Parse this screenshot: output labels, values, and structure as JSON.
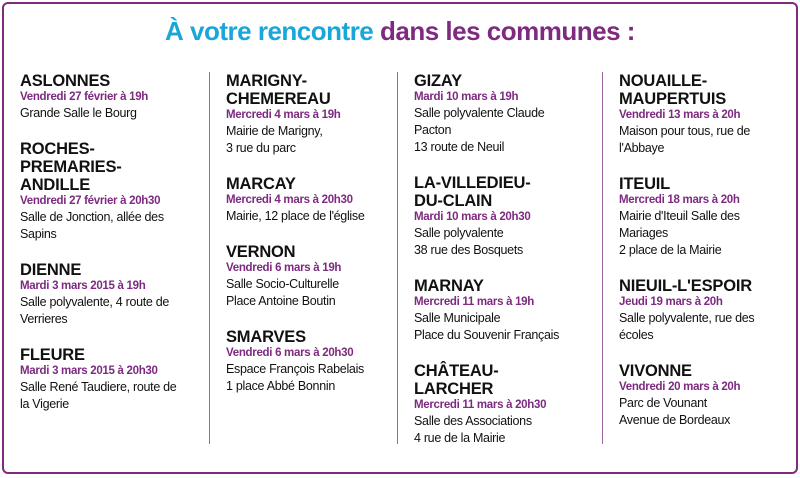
{
  "title": {
    "highlight": "À votre rencontre",
    "rest": "dans les communes :"
  },
  "columns": [
    {
      "entries": [
        {
          "name": [
            "ASLONNES"
          ],
          "date": "Vendredi 27 février à 19h",
          "address": [
            "Grande Salle le Bourg"
          ]
        },
        {
          "name": [
            "ROCHES-",
            "PREMARIES-",
            "ANDILLE"
          ],
          "date": "Vendredi 27 février à 20h30",
          "address": [
            "Salle de Jonction, allée des",
            "Sapins"
          ]
        },
        {
          "name": [
            "DIENNE"
          ],
          "date": "Mardi 3 mars 2015 à 19h",
          "address": [
            "Salle polyvalente, 4 route de",
            "Verrieres"
          ]
        },
        {
          "name": [
            "FLEURE"
          ],
          "date": "Mardi 3 mars 2015 à 20h30",
          "address": [
            "Salle René Taudiere, route de",
            "la Vigerie"
          ]
        }
      ]
    },
    {
      "entries": [
        {
          "name": [
            "MARIGNY-",
            "CHEMEREAU"
          ],
          "date": "Mercredi 4 mars à 19h",
          "address": [
            "Mairie de Marigny,",
            "3 rue du parc"
          ]
        },
        {
          "name": [
            "MARCAY"
          ],
          "date": "Mercredi 4 mars à 20h30",
          "address": [
            "Mairie, 12 place de l'église"
          ]
        },
        {
          "name": [
            "VERNON"
          ],
          "date": "Vendredi 6 mars à 19h",
          "address": [
            "Salle Socio-Culturelle",
            "Place Antoine Boutin"
          ]
        },
        {
          "name": [
            "SMARVES"
          ],
          "date": "Vendredi 6 mars à 20h30",
          "address": [
            "Espace François Rabelais",
            "1 place Abbé Bonnin"
          ]
        }
      ]
    },
    {
      "entries": [
        {
          "name": [
            "GIZAY"
          ],
          "date": "Mardi 10 mars à 19h",
          "address": [
            "Salle polyvalente Claude",
            "Pacton",
            "13 route de Neuil"
          ]
        },
        {
          "name": [
            "LA-VILLEDIEU-",
            "DU-CLAIN"
          ],
          "date": "Mardi 10 mars à 20h30",
          "address": [
            "Salle polyvalente",
            "38 rue des Bosquets"
          ]
        },
        {
          "name": [
            "MARNAY"
          ],
          "date": "Mercredi 11 mars à 19h",
          "address": [
            "Salle Municipale",
            "Place du Souvenir Français"
          ]
        },
        {
          "name": [
            "CHÂTEAU-",
            "LARCHER"
          ],
          "date": "Mercredi 11 mars à 20h30",
          "address": [
            "Salle des Associations",
            "4 rue de la Mairie"
          ]
        }
      ]
    },
    {
      "entries": [
        {
          "name": [
            "NOUAILLE-",
            "MAUPERTUIS"
          ],
          "date": "Vendredi 13 mars à 20h",
          "address": [
            "Maison pour tous, rue de",
            "l'Abbaye"
          ]
        },
        {
          "name": [
            "ITEUIL"
          ],
          "date": "Mercredi 18 mars à 20h",
          "address": [
            "Mairie d'Iteuil Salle des",
            "Mariages",
            "2 place de la Mairie"
          ]
        },
        {
          "name": [
            "NIEUIL-L'ESPOIR"
          ],
          "date": "Jeudi 19 mars à 20h",
          "address": [
            "Salle polyvalente, rue des",
            "écoles"
          ]
        },
        {
          "name": [
            "VIVONNE"
          ],
          "date": "Vendredi 20 mars à 20h",
          "address": [
            "Parc de Vounant",
            "Avenue de Bordeaux"
          ]
        }
      ]
    }
  ]
}
